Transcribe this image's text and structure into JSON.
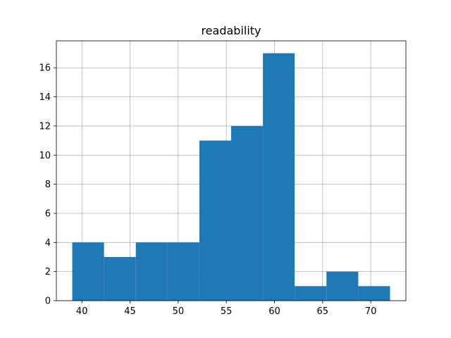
{
  "chart_data": {
    "type": "bar",
    "title": "readability",
    "xlabel": "",
    "ylabel": "",
    "bin_edges": [
      39.0,
      42.3,
      45.6,
      48.9,
      52.2,
      55.5,
      58.8,
      62.1,
      65.4,
      68.7,
      72.0
    ],
    "counts": [
      4,
      3,
      4,
      4,
      11,
      12,
      17,
      1,
      2,
      1
    ],
    "xlim": [
      37.35,
      73.65
    ],
    "ylim": [
      0,
      17.85
    ],
    "xticks": [
      40,
      45,
      50,
      55,
      60,
      65,
      70
    ],
    "yticks": [
      0,
      2,
      4,
      6,
      8,
      10,
      12,
      14,
      16
    ],
    "grid": true,
    "bar_color": "#1f77b4"
  }
}
